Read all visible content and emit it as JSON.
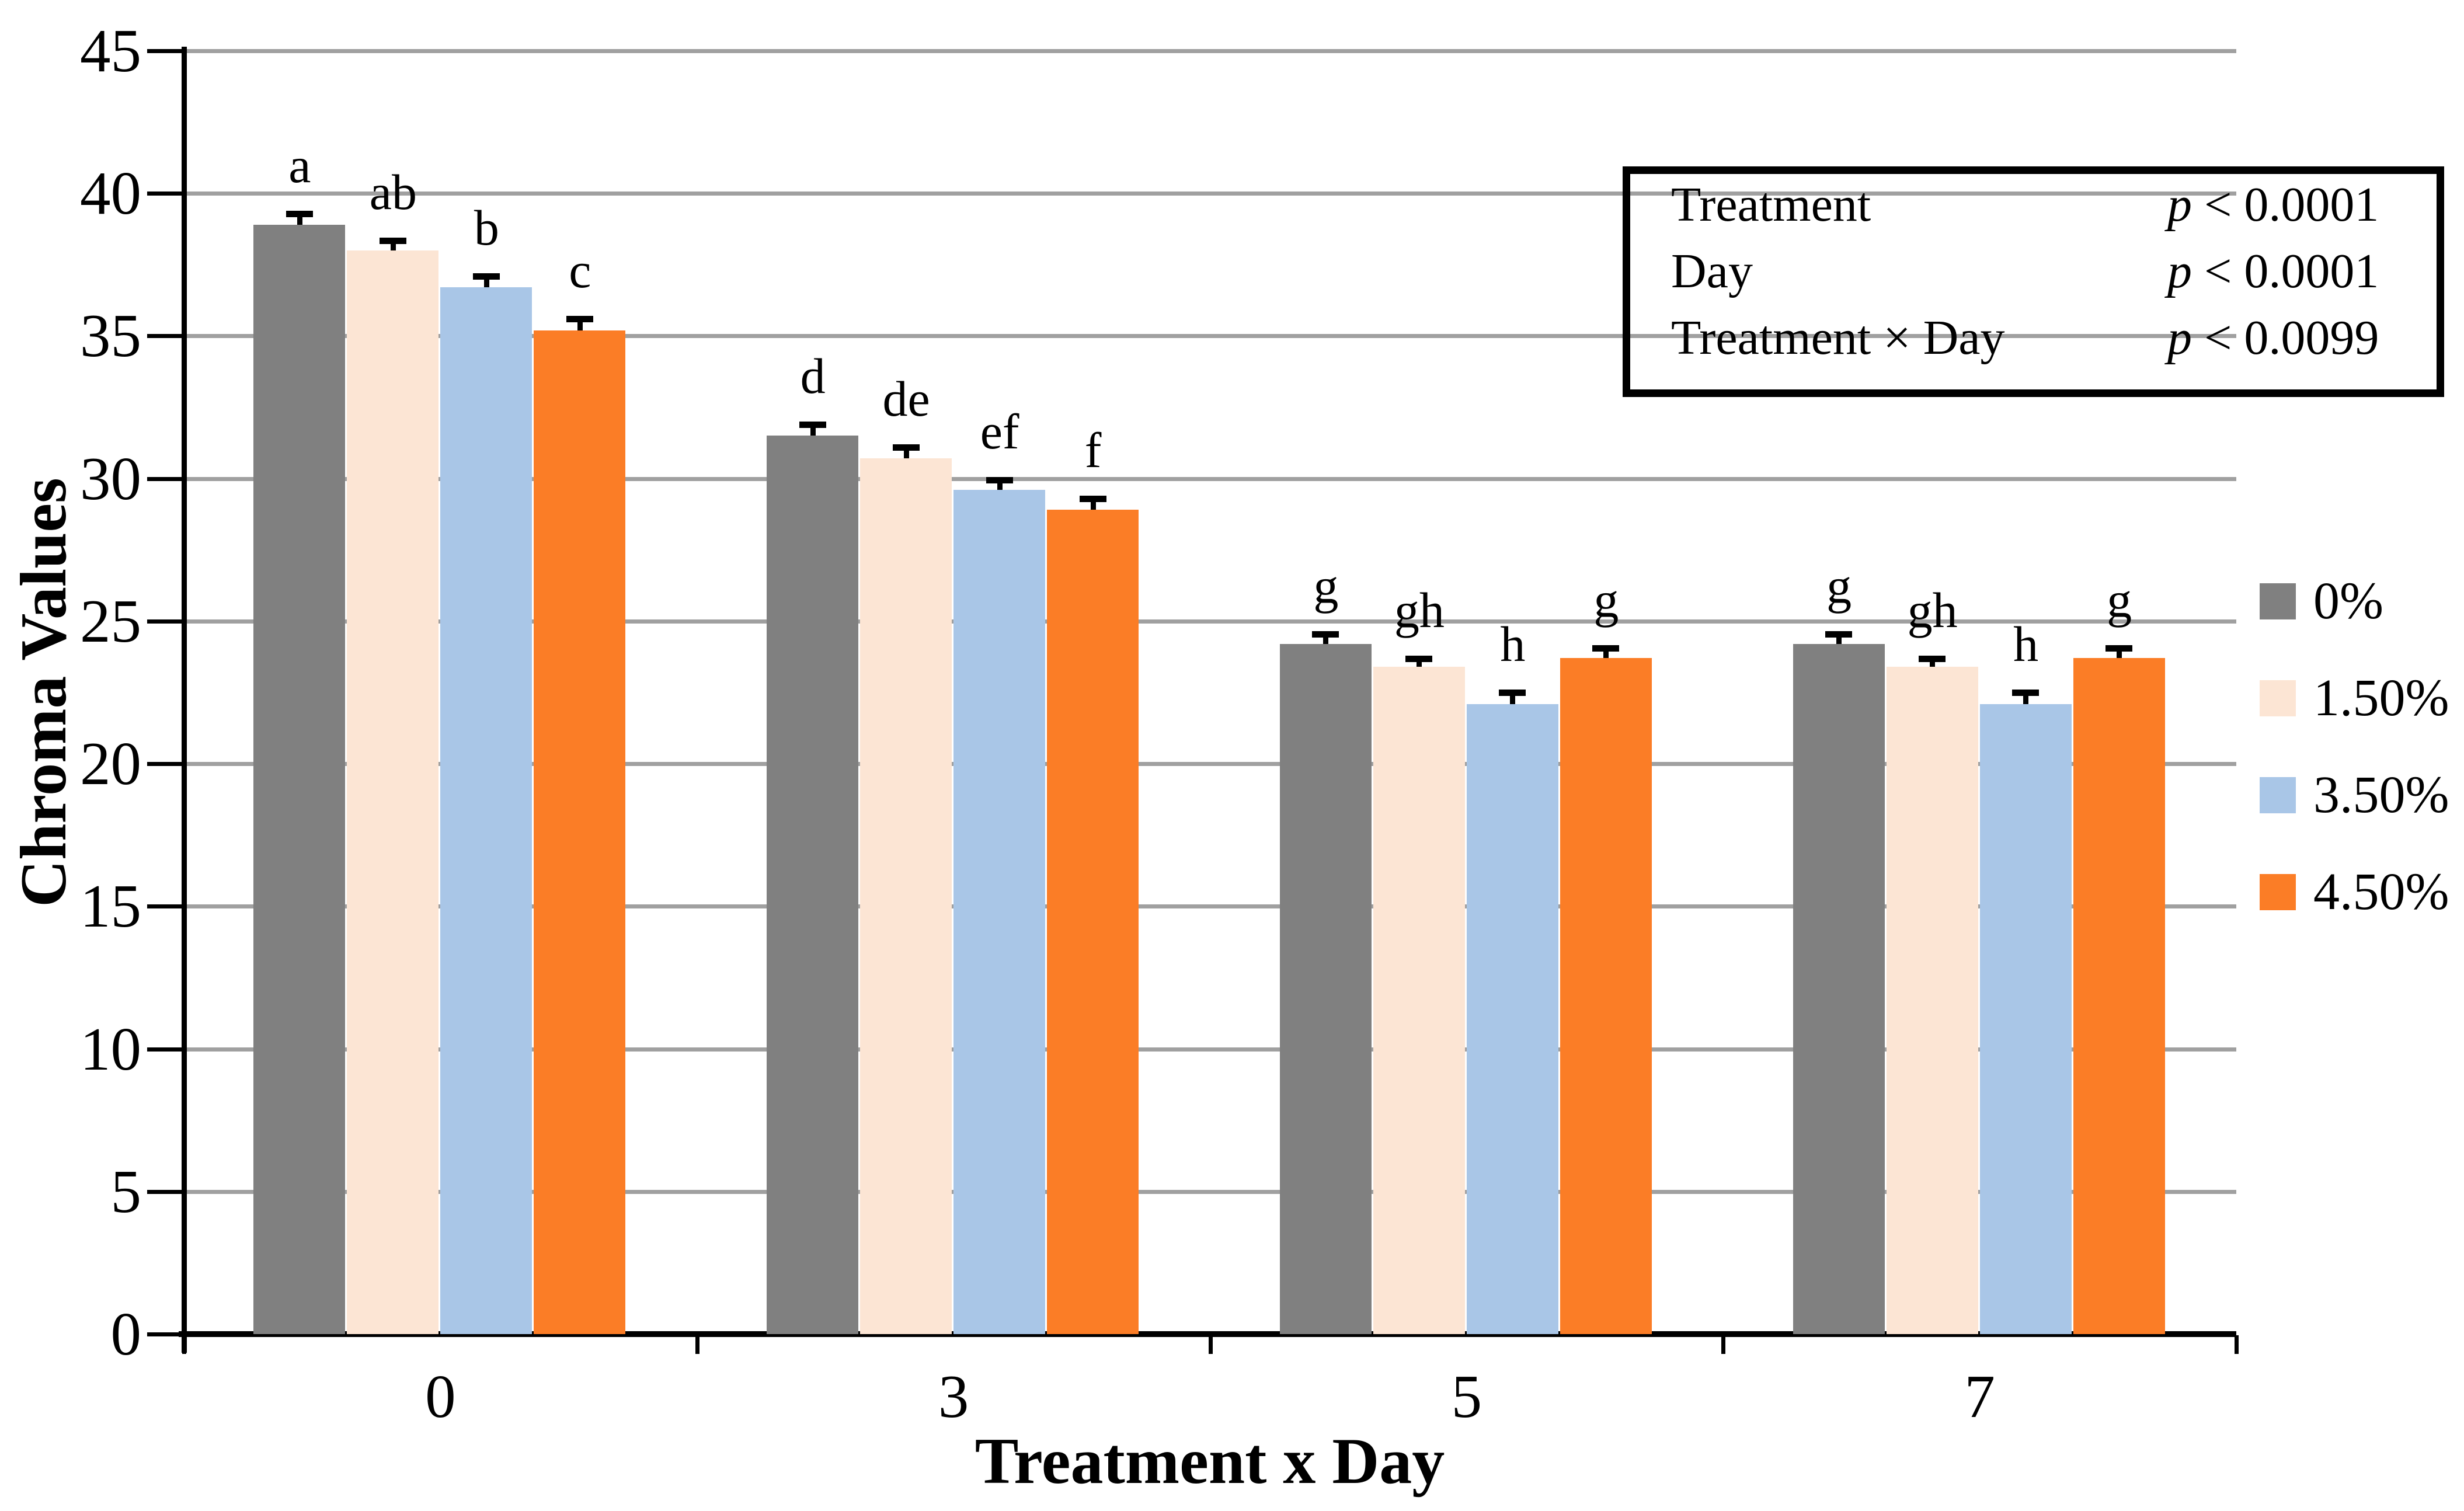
{
  "chart_data": {
    "type": "bar",
    "title": "",
    "xlabel": "Treatment x Day",
    "ylabel": "Chroma Values",
    "ylim": [
      0,
      45
    ],
    "ytick_step": 5,
    "yticks": [
      0,
      5,
      10,
      15,
      20,
      25,
      30,
      35,
      40,
      45
    ],
    "categories": [
      "0",
      "3",
      "5",
      "7"
    ],
    "series": [
      {
        "name": "0%",
        "color": "#808080",
        "values": [
          38.9,
          31.5,
          24.2,
          24.2
        ],
        "errors": [
          0.5,
          0.5,
          0.45,
          0.45
        ],
        "letters": [
          "a",
          "d",
          "g",
          "g"
        ]
      },
      {
        "name": "1.50%",
        "color": "#FCE5D4",
        "values": [
          38.0,
          30.7,
          23.4,
          23.4
        ],
        "errors": [
          0.45,
          0.5,
          0.4,
          0.4
        ],
        "letters": [
          "ab",
          "de",
          "gh",
          "gh"
        ]
      },
      {
        "name": "3.50%",
        "color": "#A9C6E7",
        "values": [
          36.7,
          29.6,
          22.1,
          22.1
        ],
        "errors": [
          0.5,
          0.45,
          0.5,
          0.5
        ],
        "letters": [
          "b",
          "ef",
          "h",
          "h"
        ]
      },
      {
        "name": "4.50%",
        "color": "#FB7D26",
        "values": [
          35.2,
          28.9,
          23.7,
          23.7
        ],
        "errors": [
          0.5,
          0.5,
          0.45,
          0.45
        ],
        "letters": [
          "c",
          "f",
          "g",
          "g"
        ]
      }
    ],
    "grid": true,
    "grid_color": "#A0A0A0",
    "legend_position": "right"
  },
  "stats_box": {
    "rows": [
      {
        "label": "Treatment",
        "p_label": "p",
        "p_value": " < 0.0001"
      },
      {
        "label": "Day",
        "p_label": "p",
        "p_value": " < 0.0001"
      },
      {
        "label": "Treatment × Day",
        "p_label": "p",
        "p_value": " < 0.0099"
      }
    ]
  }
}
